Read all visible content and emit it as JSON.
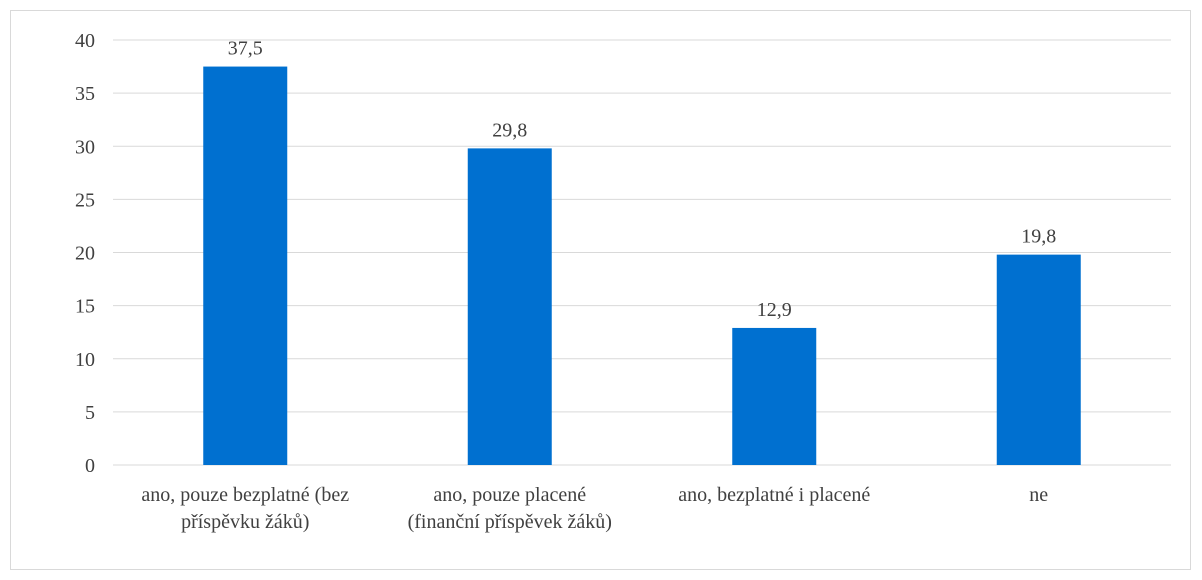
{
  "chart_data": {
    "type": "bar",
    "title": "",
    "xlabel": "",
    "ylabel": "",
    "categories": [
      [
        "ano, pouze bezplatné (bez",
        "příspěvku žáků)"
      ],
      [
        "ano, pouze placené",
        "(finanční příspěvek žáků)"
      ],
      [
        "ano, bezplatné i placené"
      ],
      [
        "ne"
      ]
    ],
    "values": [
      37.5,
      29.8,
      12.9,
      19.8
    ],
    "value_labels": [
      "37,5",
      "29,8",
      "12,9",
      "19,8"
    ],
    "ylim": [
      0,
      40
    ],
    "yticks": [
      0,
      5,
      10,
      15,
      20,
      25,
      30,
      35,
      40
    ],
    "grid": true,
    "legend": "none",
    "colors": {
      "bar": "#0070d0",
      "grid": "#d9d9d9",
      "text": "#404040"
    }
  }
}
